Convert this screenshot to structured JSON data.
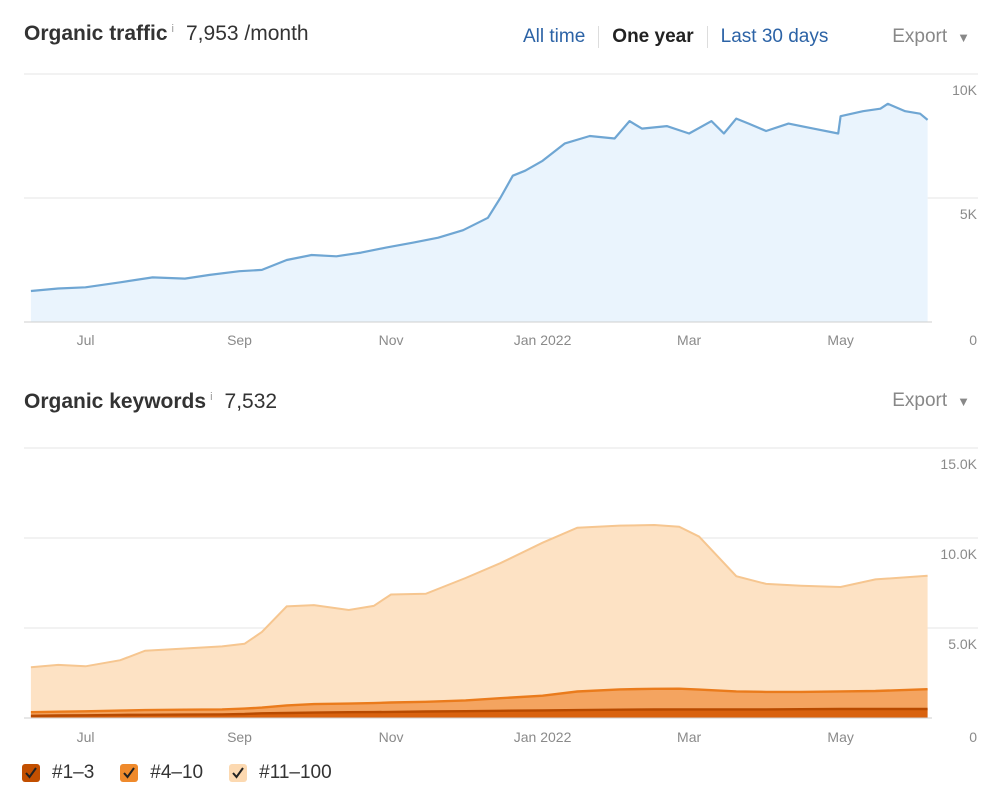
{
  "traffic": {
    "title": "Organic traffic",
    "info_glyph": "i",
    "value": "7,953 /month",
    "ranges": [
      "All time",
      "One year",
      "Last 30 days"
    ],
    "active_range": "One year",
    "export_label": "Export"
  },
  "keywords": {
    "title": "Organic keywords",
    "info_glyph": "i",
    "value": "7,532",
    "export_label": "Export"
  },
  "legend": [
    {
      "label": "#1–3",
      "color": "#c24f00"
    },
    {
      "label": "#4–10",
      "color": "#ef8a2c"
    },
    {
      "label": "#11–100",
      "color": "#fcd9b1"
    }
  ],
  "chart_data": [
    {
      "type": "area",
      "title": "Organic traffic",
      "x_labels": [
        "Jul",
        "Sep",
        "Nov",
        "Jan 2022",
        "Mar",
        "May"
      ],
      "y_labels": [
        "10K",
        "5K",
        "0"
      ],
      "ylim": [
        0,
        10000
      ],
      "grid": true,
      "series": [
        {
          "color": "#6fa6d3",
          "fill": "#eaf4fd",
          "x": [
            "2021-06-09",
            "2021-06-20",
            "2021-07-01",
            "2021-07-15",
            "2021-07-28",
            "2021-08-10",
            "2021-08-20",
            "2021-09-01",
            "2021-09-10",
            "2021-09-20",
            "2021-09-30",
            "2021-10-10",
            "2021-10-20",
            "2021-10-30",
            "2021-11-10",
            "2021-11-20",
            "2021-11-30",
            "2021-12-10",
            "2021-12-15",
            "2021-12-20",
            "2021-12-25",
            "2022-01-01",
            "2022-01-10",
            "2022-01-20",
            "2022-01-30",
            "2022-02-05",
            "2022-02-10",
            "2022-02-20",
            "2022-03-01",
            "2022-03-10",
            "2022-03-15",
            "2022-03-20",
            "2022-03-25",
            "2022-04-01",
            "2022-04-10",
            "2022-04-20",
            "2022-04-30",
            "2022-05-01",
            "2022-05-10",
            "2022-05-17",
            "2022-05-20",
            "2022-05-27",
            "2022-06-02",
            "2022-06-05"
          ],
          "values": [
            1250,
            1350,
            1400,
            1600,
            1800,
            1750,
            1900,
            2050,
            2100,
            2500,
            2700,
            2650,
            2800,
            3000,
            3200,
            3400,
            3700,
            4200,
            5000,
            5900,
            6100,
            6500,
            7200,
            7500,
            7400,
            8100,
            7800,
            7900,
            7600,
            8100,
            7600,
            8200,
            8000,
            7700,
            8000,
            7800,
            7600,
            8300,
            8500,
            8600,
            8800,
            8500,
            8400,
            8150
          ]
        }
      ]
    },
    {
      "type": "area",
      "title": "Organic keywords",
      "x_labels": [
        "Jul",
        "Sep",
        "Nov",
        "Jan 2022",
        "Mar",
        "May"
      ],
      "y_labels": [
        "15.0K",
        "10.0K",
        "5.0K",
        "0"
      ],
      "ylim": [
        0,
        15000
      ],
      "grid": true,
      "stacked": true,
      "x": [
        "2021-06-09",
        "2021-06-20",
        "2021-07-01",
        "2021-07-15",
        "2021-07-25",
        "2021-08-10",
        "2021-08-25",
        "2021-09-03",
        "2021-09-10",
        "2021-09-20",
        "2021-10-01",
        "2021-10-15",
        "2021-10-25",
        "2021-11-01",
        "2021-11-15",
        "2021-12-01",
        "2021-12-15",
        "2022-01-01",
        "2022-01-15",
        "2022-02-01",
        "2022-02-15",
        "2022-02-25",
        "2022-03-05",
        "2022-03-20",
        "2022-04-01",
        "2022-04-15",
        "2022-05-01",
        "2022-05-15",
        "2022-06-05"
      ],
      "series": [
        {
          "name": "#1–3",
          "color": "#c24f00",
          "values": [
            120,
            140,
            150,
            170,
            180,
            190,
            200,
            220,
            260,
            280,
            300,
            320,
            330,
            340,
            360,
            380,
            400,
            420,
            440,
            460,
            470,
            480,
            480,
            480,
            480,
            490,
            500,
            500,
            500
          ]
        },
        {
          "name": "#4–10",
          "color": "#ef8a2c",
          "values": [
            200,
            210,
            220,
            240,
            260,
            270,
            280,
            300,
            320,
            420,
            470,
            480,
            500,
            520,
            540,
            600,
            700,
            820,
            1030,
            1130,
            1150,
            1150,
            1100,
            1000,
            970,
            960,
            980,
            1000,
            1100
          ]
        },
        {
          "name": "#11–100",
          "color": "#fcd9b1",
          "values": [
            2500,
            2600,
            2500,
            2800,
            3300,
            3400,
            3500,
            3600,
            4200,
            5500,
            5500,
            5200,
            5400,
            6000,
            6000,
            6800,
            7500,
            8500,
            9100,
            9100,
            9100,
            9000,
            8500,
            6400,
            6000,
            5900,
            5800,
            6200,
            6300
          ]
        }
      ]
    }
  ]
}
